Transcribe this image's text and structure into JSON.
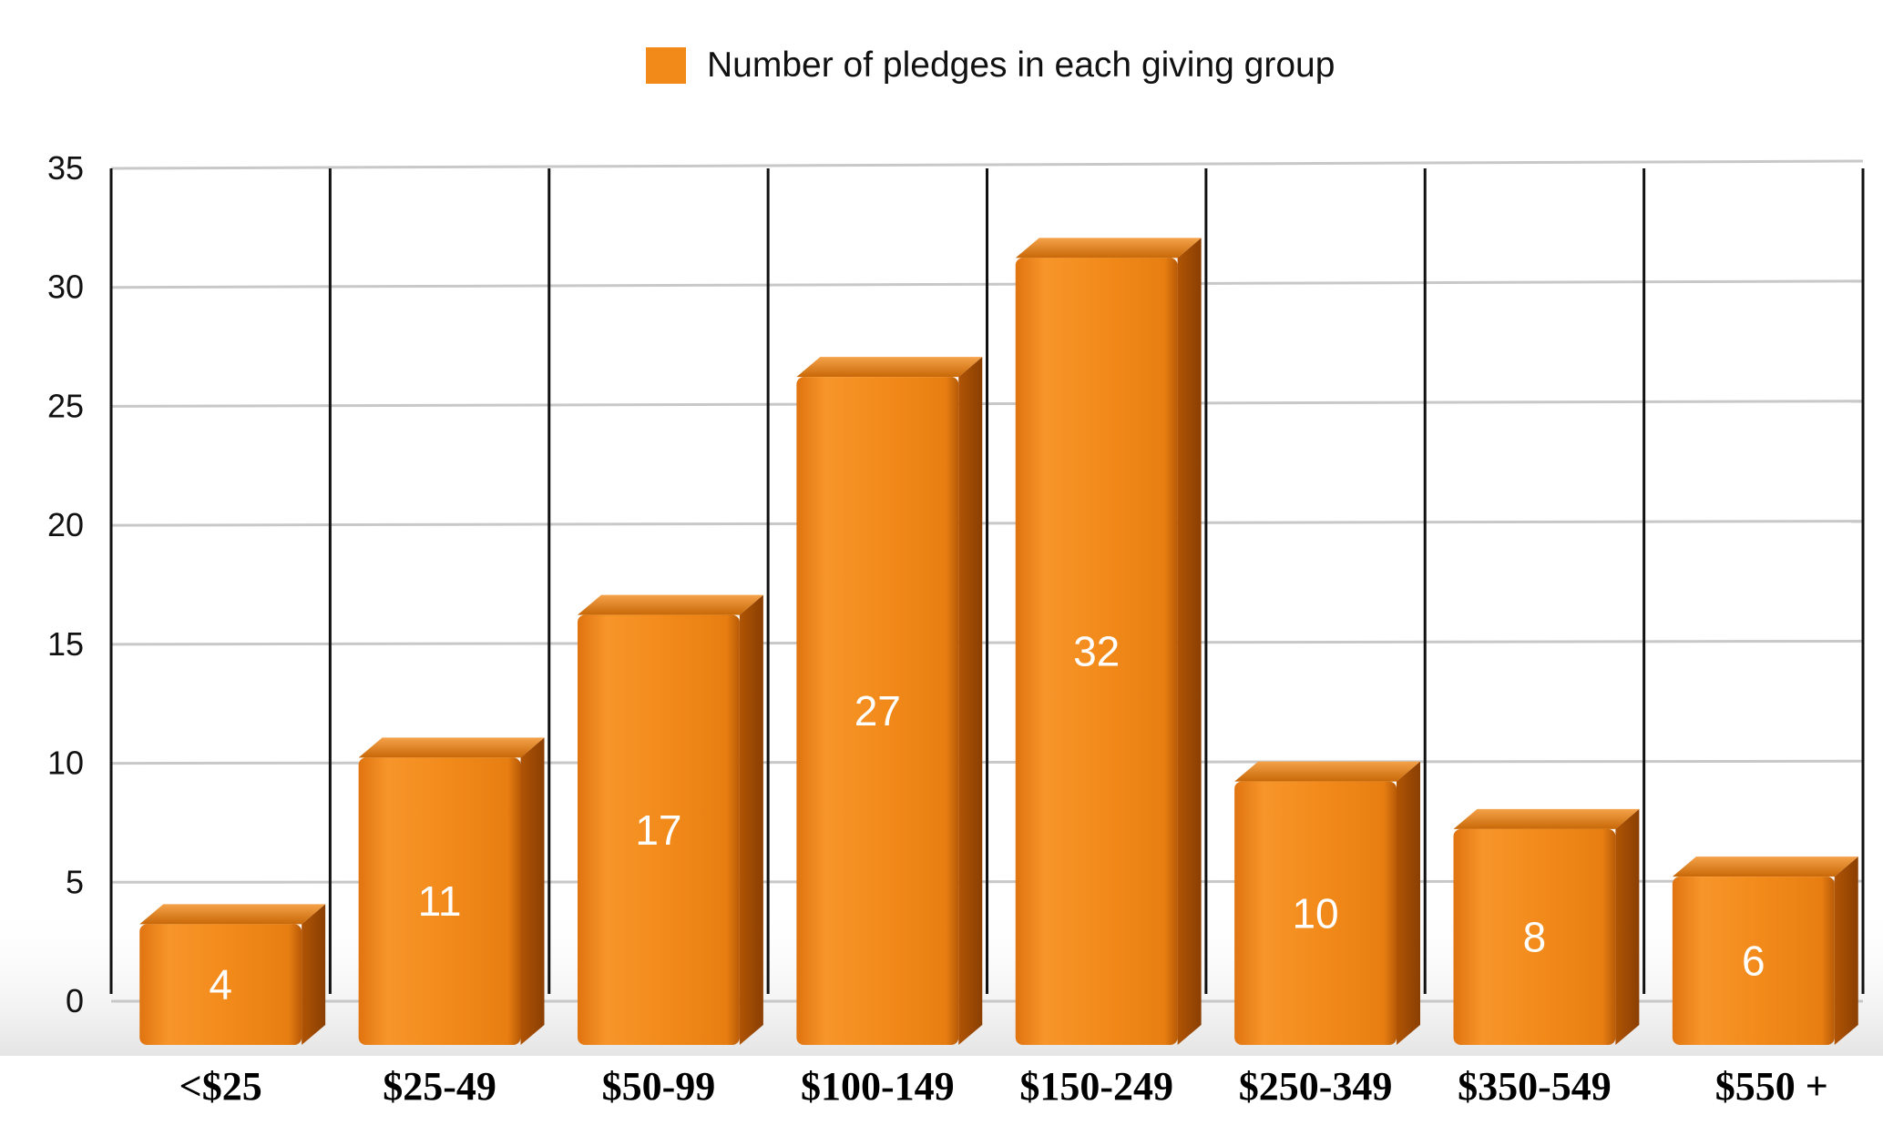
{
  "chart_data": {
    "type": "bar",
    "categories": [
      "<$25",
      "$25-49",
      "$50-99",
      "$100-149",
      "$150-249",
      "$250-349",
      "$350-549",
      "$550 +"
    ],
    "series": [
      {
        "name": "Number of pledges in each giving group",
        "values": [
          4,
          11,
          17,
          27,
          32,
          10,
          8,
          6
        ]
      }
    ],
    "data_labels": [
      "4",
      "11",
      "17",
      "27",
      "32",
      "10",
      "8",
      "6"
    ],
    "y_ticks": [
      "0",
      "5",
      "10",
      "15",
      "20",
      "25",
      "30",
      "35"
    ],
    "ylim": [
      0,
      35
    ],
    "grid": true,
    "legend_position": "top-center",
    "colors": {
      "bar": "#f28a1a",
      "bar_dark": "#c9650a",
      "bar_top": "#d97510",
      "grid": "#c8c8c8"
    }
  }
}
